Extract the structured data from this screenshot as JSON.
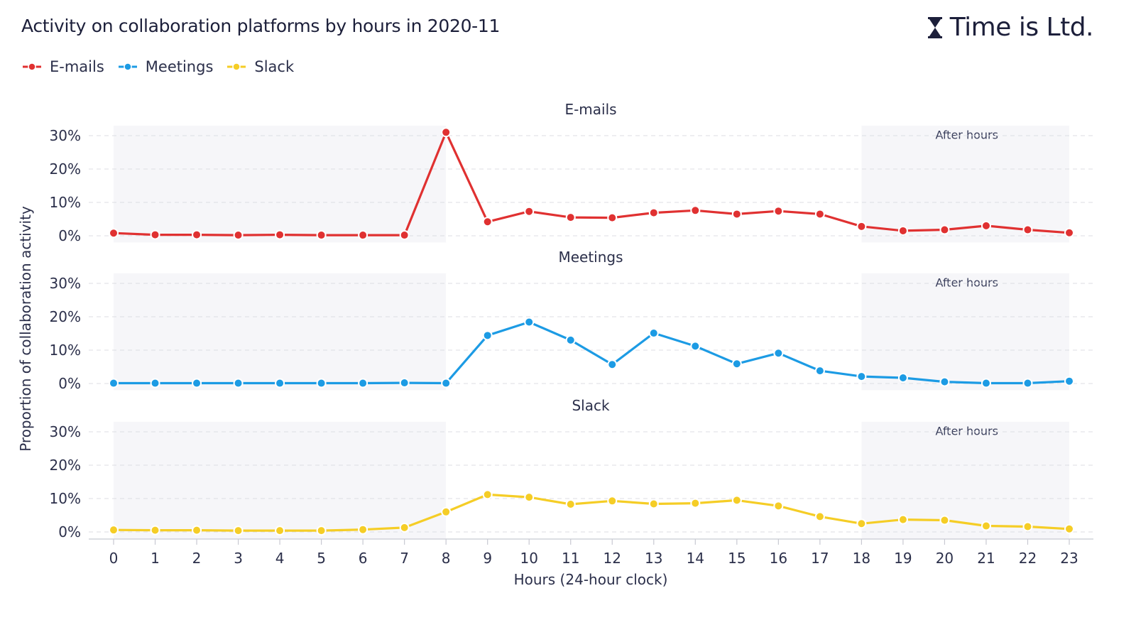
{
  "title": "Activity on collaboration platforms by hours in 2020-11",
  "brand": {
    "name": "Time is Ltd.",
    "icon": "hourglass-icon"
  },
  "legend": [
    {
      "name": "E-mails",
      "color": "#e03131"
    },
    {
      "name": "Meetings",
      "color": "#1c9be4"
    },
    {
      "name": "Slack",
      "color": "#f5cd26"
    }
  ],
  "chart_data": {
    "type": "line",
    "x": [
      0,
      1,
      2,
      3,
      4,
      5,
      6,
      7,
      8,
      9,
      10,
      11,
      12,
      13,
      14,
      15,
      16,
      17,
      18,
      19,
      20,
      21,
      22,
      23
    ],
    "xlabel": "Hours (24-hour clock)",
    "ylabel": "Proportion of collaboration activity",
    "yticks": [
      0,
      10,
      20,
      30
    ],
    "ytick_labels": [
      "0%",
      "10%",
      "20%",
      "30%"
    ],
    "ylim": [
      -2,
      33
    ],
    "grid": true,
    "legend_position": "top-left",
    "shaded_regions": [
      {
        "from": 0,
        "to": 8,
        "label": ""
      },
      {
        "from": 18,
        "to": 23,
        "label": "After hours"
      }
    ],
    "series": [
      {
        "name": "E-mails",
        "panel_title": "E-mails",
        "color": "#e03131",
        "values": [
          0.8,
          0.3,
          0.3,
          0.2,
          0.3,
          0.2,
          0.2,
          0.2,
          31.0,
          4.2,
          7.3,
          5.5,
          5.4,
          6.9,
          7.6,
          6.5,
          7.4,
          6.5,
          2.8,
          1.5,
          1.8,
          3.0,
          1.8,
          0.9
        ]
      },
      {
        "name": "Meetings",
        "panel_title": "Meetings",
        "color": "#1c9be4",
        "values": [
          0.1,
          0.1,
          0.1,
          0.1,
          0.1,
          0.1,
          0.1,
          0.2,
          0.1,
          14.4,
          18.4,
          13.0,
          5.7,
          15.1,
          11.2,
          5.9,
          9.1,
          3.8,
          2.1,
          1.7,
          0.5,
          0.1,
          0.1,
          0.7
        ]
      },
      {
        "name": "Slack",
        "panel_title": "Slack",
        "color": "#f5cd26",
        "values": [
          0.6,
          0.5,
          0.5,
          0.4,
          0.4,
          0.4,
          0.7,
          1.3,
          6.0,
          11.2,
          10.4,
          8.3,
          9.3,
          8.4,
          8.6,
          9.5,
          7.8,
          4.6,
          2.5,
          3.7,
          3.5,
          1.8,
          1.6,
          0.9
        ]
      }
    ]
  }
}
